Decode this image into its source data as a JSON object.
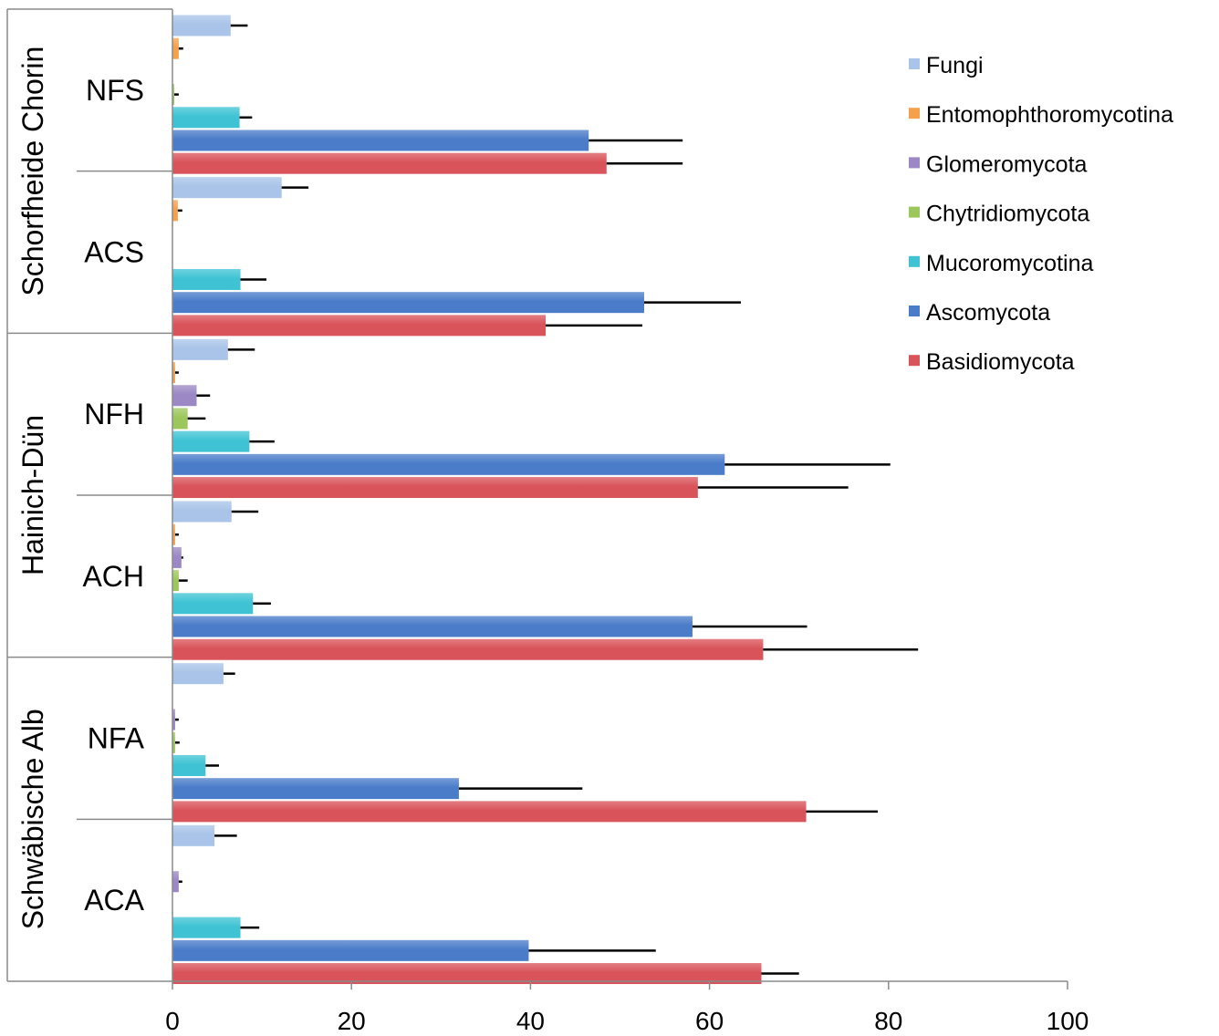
{
  "chart_data": {
    "type": "bar",
    "orientation": "horizontal",
    "xlim": [
      0,
      100
    ],
    "xticks": [
      "0",
      "20",
      "40",
      "60",
      "80",
      "100"
    ],
    "grid": false,
    "legend_position": "top-right",
    "series": [
      {
        "name": "Fungi",
        "color": "#a9c4e8"
      },
      {
        "name": "Entomophthoromycotina",
        "color": "#f5a04a"
      },
      {
        "name": "Glomeromycota",
        "color": "#9b88c4"
      },
      {
        "name": "Chytridiomycota",
        "color": "#9cc75c"
      },
      {
        "name": "Mucoromycotina",
        "color": "#3fc3d4"
      },
      {
        "name": "Ascomycota",
        "color": "#4a7cc9"
      },
      {
        "name": "Basidiomycota",
        "color": "#d9535a"
      }
    ],
    "regions": [
      {
        "name": "Schorfheide Chorin",
        "sites": [
          {
            "name": "NFS",
            "values": [
              6.5,
              0.7,
              0,
              0.2,
              7.5,
              46.5,
              48.5
            ],
            "errors": [
              1.9,
              0.5,
              0,
              0.5,
              1.4,
              10.5,
              8.5
            ]
          },
          {
            "name": "ACS",
            "values": [
              12.2,
              0.6,
              0,
              0,
              7.6,
              52.7,
              41.7
            ],
            "errors": [
              3,
              0.5,
              0,
              0,
              2.9,
              10.8,
              10.8
            ]
          }
        ]
      },
      {
        "name": "Hainich-Dün",
        "sites": [
          {
            "name": "NFH",
            "values": [
              6.2,
              0.3,
              2.7,
              1.7,
              8.6,
              61.7,
              58.7
            ],
            "errors": [
              3,
              0.4,
              1.5,
              2,
              2.8,
              18.5,
              16.8
            ]
          },
          {
            "name": "ACH",
            "values": [
              6.6,
              0.3,
              1,
              0.7,
              9,
              58.1,
              66
            ],
            "errors": [
              3,
              0.4,
              0.2,
              1,
              2,
              12.8,
              17.3
            ]
          }
        ]
      },
      {
        "name": "Schwäbische Alb",
        "sites": [
          {
            "name": "NFA",
            "values": [
              5.7,
              0,
              0.3,
              0.3,
              3.7,
              32,
              70.8
            ],
            "errors": [
              1.3,
              0,
              0.4,
              0.5,
              1.5,
              13.8,
              8
            ]
          },
          {
            "name": "ACA",
            "values": [
              4.7,
              0,
              0.7,
              0,
              7.6,
              39.8,
              65.8
            ],
            "errors": [
              2.5,
              0,
              0.4,
              0,
              2.1,
              14.2,
              4.2
            ]
          }
        ]
      }
    ]
  }
}
